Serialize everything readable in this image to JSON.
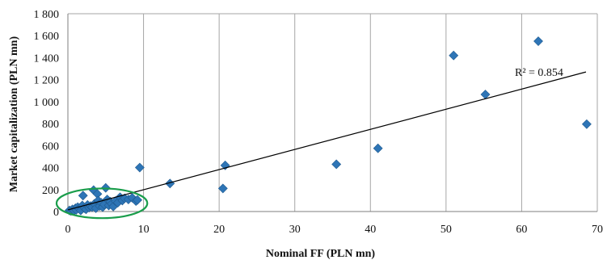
{
  "chart_data": {
    "type": "scatter",
    "xlabel": "Nominal FF (PLN mn)",
    "ylabel": "Market capitalization (PLN mn)",
    "xlim": [
      0,
      70
    ],
    "ylim": [
      0,
      1800
    ],
    "x_ticks": [
      0,
      10,
      20,
      30,
      40,
      50,
      60,
      70
    ],
    "y_ticks": [
      0,
      200,
      400,
      600,
      800,
      1000,
      1200,
      1400,
      1600,
      1800
    ],
    "x_tick_labels": [
      "0",
      "10",
      "20",
      "30",
      "40",
      "50",
      "60",
      "70"
    ],
    "y_tick_labels": [
      "0",
      "200",
      "400",
      "600",
      "800",
      "1 000",
      "1 200",
      "1 400",
      "1 600",
      "1 800"
    ],
    "grid": "vertical",
    "marker_color": "#2e75b6",
    "trendline": {
      "type": "linear",
      "start": [
        0,
        15
      ],
      "end": [
        68.5,
        1270
      ],
      "label": "R² = 0.854"
    },
    "highlight_ellipse": {
      "color": "#1a9d4b",
      "center": [
        4.5,
        75
      ],
      "radius_x": 6,
      "radius_y": 135
    },
    "points": [
      [
        0.2,
        10
      ],
      [
        0.4,
        5
      ],
      [
        0.6,
        20
      ],
      [
        0.8,
        8
      ],
      [
        1.0,
        30
      ],
      [
        1.1,
        15
      ],
      [
        1.3,
        40
      ],
      [
        1.5,
        25
      ],
      [
        1.7,
        10
      ],
      [
        1.9,
        55
      ],
      [
        2.0,
        145
      ],
      [
        2.2,
        30
      ],
      [
        2.4,
        20
      ],
      [
        2.6,
        60
      ],
      [
        2.8,
        35
      ],
      [
        3.0,
        50
      ],
      [
        3.2,
        40
      ],
      [
        3.4,
        195
      ],
      [
        3.5,
        70
      ],
      [
        3.7,
        30
      ],
      [
        3.9,
        160
      ],
      [
        4.0,
        100
      ],
      [
        4.2,
        50
      ],
      [
        4.4,
        80
      ],
      [
        4.6,
        40
      ],
      [
        4.8,
        65
      ],
      [
        5.0,
        215
      ],
      [
        5.2,
        110
      ],
      [
        5.4,
        55
      ],
      [
        5.6,
        90
      ],
      [
        5.8,
        70
      ],
      [
        6.0,
        45
      ],
      [
        6.3,
        95
      ],
      [
        6.6,
        80
      ],
      [
        6.9,
        130
      ],
      [
        7.2,
        100
      ],
      [
        7.5,
        120
      ],
      [
        8.0,
        110
      ],
      [
        8.5,
        125
      ],
      [
        9.0,
        95
      ],
      [
        9.2,
        105
      ],
      [
        9.5,
        400
      ],
      [
        13.5,
        255
      ],
      [
        20.5,
        210
      ],
      [
        20.8,
        420
      ],
      [
        35.5,
        430
      ],
      [
        41.0,
        575
      ],
      [
        51.0,
        1420
      ],
      [
        55.2,
        1065
      ],
      [
        62.2,
        1550
      ],
      [
        68.6,
        795
      ]
    ]
  }
}
